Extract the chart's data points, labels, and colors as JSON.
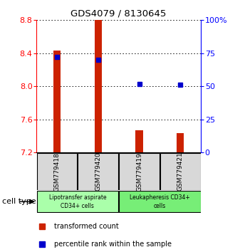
{
  "title": "GDS4079 / 8130645",
  "samples": [
    "GSM779418",
    "GSM779420",
    "GSM779419",
    "GSM779421"
  ],
  "red_values": [
    8.43,
    8.8,
    7.47,
    7.43
  ],
  "blue_values": [
    72,
    70,
    52,
    51
  ],
  "y_min": 7.2,
  "y_max": 8.8,
  "y_ticks": [
    7.2,
    7.6,
    8.0,
    8.4,
    8.8
  ],
  "y2_ticks": [
    0,
    25,
    50,
    75,
    100
  ],
  "y2_labels": [
    "0",
    "25",
    "50",
    "75",
    "100%"
  ],
  "bar_baseline": 7.2,
  "red_color": "#cc2200",
  "blue_color": "#0000cc",
  "sample_bg": "#d8d8d8",
  "group1_color": "#aaffaa",
  "group2_color": "#77ee77",
  "legend_red": "#cc2200",
  "legend_blue": "#0000cc"
}
